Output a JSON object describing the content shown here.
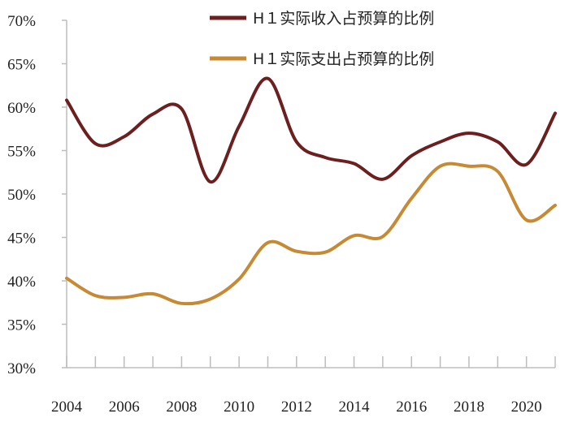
{
  "chart_data": {
    "type": "line",
    "title": "",
    "xlabel": "",
    "ylabel": "",
    "ylim": [
      30,
      70
    ],
    "y_ticks": [
      30,
      35,
      40,
      45,
      50,
      55,
      60,
      65,
      70
    ],
    "y_tick_labels": [
      "30%",
      "35%",
      "40%",
      "45%",
      "50%",
      "55%",
      "60%",
      "65%",
      "70%"
    ],
    "x_range": [
      2004,
      2021
    ],
    "x_ticks": [
      2004,
      2006,
      2008,
      2010,
      2012,
      2014,
      2016,
      2018,
      2020
    ],
    "x_tick_labels": [
      "2004",
      "2006",
      "2008",
      "2010",
      "2012",
      "2014",
      "2016",
      "2018",
      "2020"
    ],
    "grid": false,
    "legend_position": "top-right",
    "x": [
      2004,
      2005,
      2006,
      2007,
      2008,
      2009,
      2010,
      2011,
      2012,
      2013,
      2014,
      2015,
      2016,
      2017,
      2018,
      2019,
      2020,
      2021
    ],
    "series": [
      {
        "name": "H１实际收入占预算的比例",
        "color": "#6b1f1f",
        "values": [
          60.8,
          55.8,
          56.6,
          59.2,
          59.8,
          51.4,
          57.8,
          63.3,
          56.0,
          54.2,
          53.5,
          51.7,
          54.4,
          56.0,
          57.0,
          56.0,
          53.4,
          59.3
        ]
      },
      {
        "name": "H１实际支出占预算的比例",
        "color": "#c68a35",
        "values": [
          40.3,
          38.3,
          38.1,
          38.5,
          37.4,
          37.9,
          40.2,
          44.4,
          43.4,
          43.3,
          45.2,
          45.1,
          49.5,
          53.2,
          53.2,
          52.6,
          47.0,
          48.7
        ]
      }
    ]
  }
}
